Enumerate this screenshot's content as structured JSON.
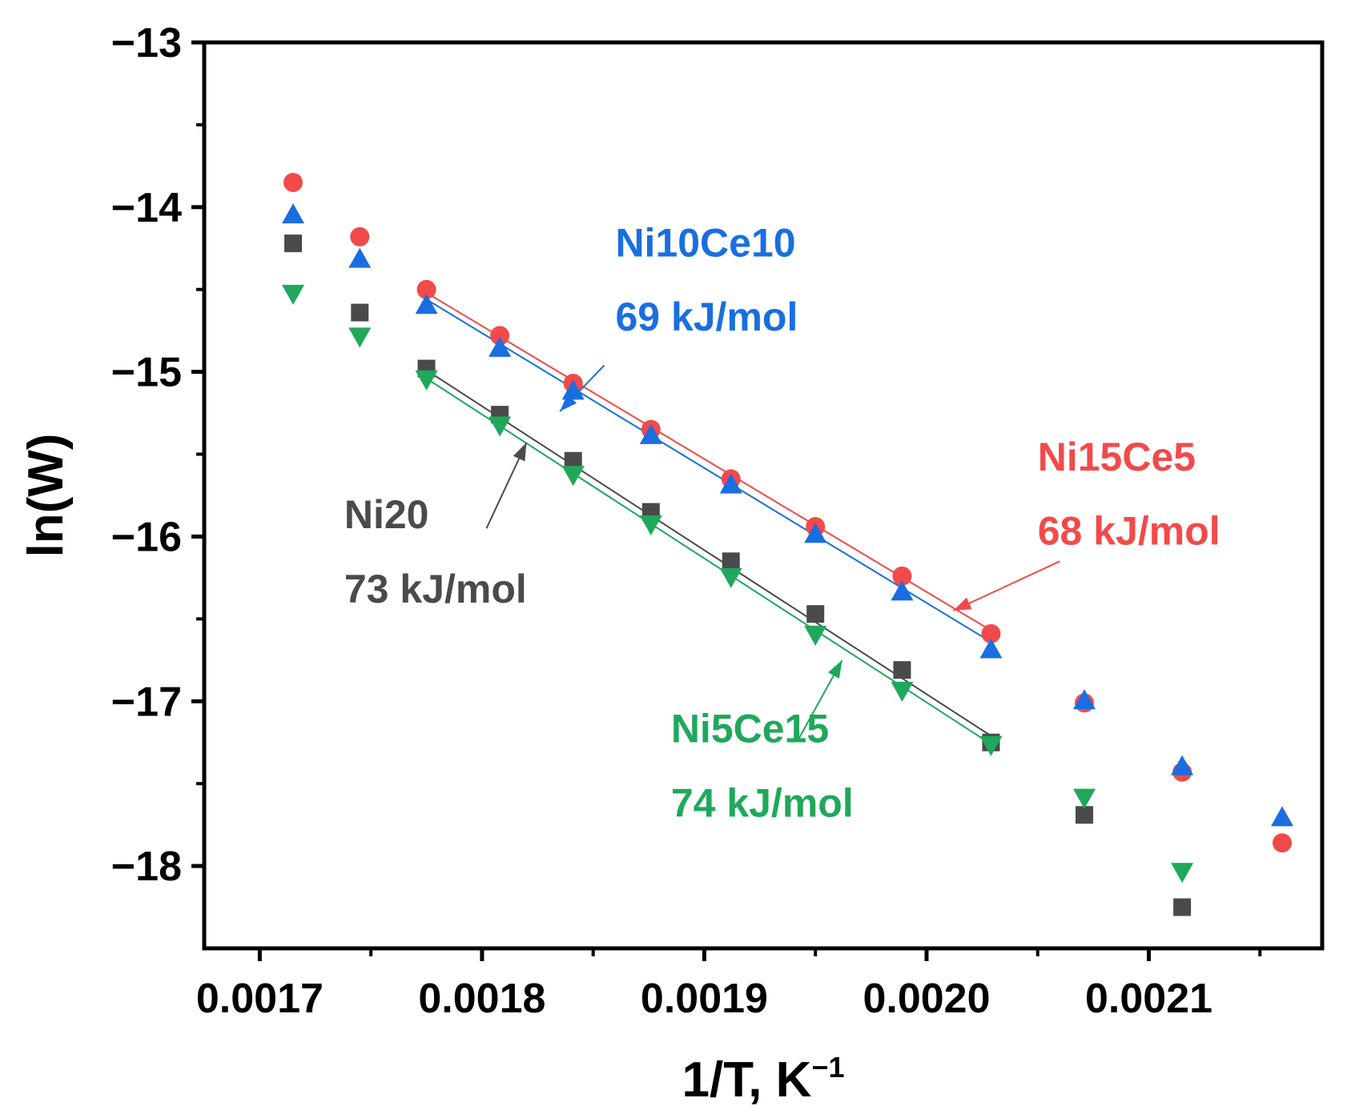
{
  "chart_data": {
    "type": "scatter",
    "xlabel": "1/T, K",
    "xlabel_sup": "−1",
    "ylabel": "ln(W)",
    "xlim": [
      0.001675,
      0.002178
    ],
    "ylim": [
      -18.5,
      -13.0
    ],
    "xticks": [
      0.0017,
      0.0018,
      0.0019,
      0.002,
      0.0021
    ],
    "xtick_labels": [
      "0.0017",
      "0.0018",
      "0.0019",
      "0.0020",
      "0.0021"
    ],
    "yticks": [
      -18,
      -17,
      -16,
      -15,
      -14,
      -13
    ],
    "ytick_labels": [
      "−18",
      "−17",
      "−16",
      "−15",
      "−14",
      "−13"
    ],
    "legend": "none",
    "grid": false,
    "series": [
      {
        "name": "Ni15Ce5",
        "marker": "circle",
        "color": "#f24a4a",
        "x": [
          0.001715,
          0.001745,
          0.001775,
          0.001808,
          0.001841,
          0.001876,
          0.001912,
          0.00195,
          0.001989,
          0.002029,
          0.002071,
          0.002115,
          0.00216
        ],
        "y": [
          -13.85,
          -14.18,
          -14.5,
          -14.78,
          -15.07,
          -15.35,
          -15.65,
          -15.94,
          -16.24,
          -16.59,
          -17.01,
          -17.43,
          -17.86
        ],
        "fit": {
          "x": [
            0.001775,
            0.002029
          ],
          "y": [
            -14.52,
            -16.57
          ]
        }
      },
      {
        "name": "Ni10Ce10",
        "marker": "triangle-up",
        "color": "#1a6ee0",
        "x": [
          0.001715,
          0.001745,
          0.001775,
          0.001808,
          0.001841,
          0.001876,
          0.001912,
          0.00195,
          0.001989,
          0.002029,
          0.002071,
          0.002115,
          0.00216
        ],
        "y": [
          -14.05,
          -14.32,
          -14.6,
          -14.86,
          -15.12,
          -15.39,
          -15.69,
          -15.99,
          -16.34,
          -16.69,
          -17.0,
          -17.4,
          -17.71
        ],
        "fit": {
          "x": [
            0.001775,
            0.002029
          ],
          "y": [
            -14.56,
            -16.64
          ]
        }
      },
      {
        "name": "Ni20",
        "marker": "square",
        "color": "#4a4a4a",
        "x": [
          0.001715,
          0.001745,
          0.001775,
          0.001808,
          0.001841,
          0.001876,
          0.001912,
          0.00195,
          0.001989,
          0.002029,
          0.002071,
          0.002115
        ],
        "y": [
          -14.22,
          -14.64,
          -14.98,
          -15.26,
          -15.54,
          -15.85,
          -16.15,
          -16.47,
          -16.81,
          -17.25,
          -17.69,
          -18.25
        ],
        "fit": {
          "x": [
            0.001775,
            0.002029
          ],
          "y": [
            -14.99,
            -17.21
          ]
        }
      },
      {
        "name": "Ni5Ce15",
        "marker": "triangle-down",
        "color": "#1fa85b",
        "x": [
          0.001715,
          0.001745,
          0.001775,
          0.001808,
          0.001841,
          0.001876,
          0.001912,
          0.00195,
          0.001989,
          0.002029,
          0.002071,
          0.002115
        ],
        "y": [
          -14.52,
          -14.78,
          -15.04,
          -15.32,
          -15.62,
          -15.92,
          -16.24,
          -16.59,
          -16.93,
          -17.26,
          -17.58,
          -18.03
        ],
        "fit": {
          "x": [
            0.001775,
            0.002029
          ],
          "y": [
            -15.04,
            -17.26
          ]
        }
      }
    ],
    "annotations": [
      {
        "series": "Ni10Ce10",
        "label": "Ni10Ce10",
        "energy": "69 kJ/mol",
        "text_x": 0.00186,
        "text_y": [
          -14.3,
          -14.75
        ],
        "arrow_from": [
          0.001855,
          -14.96
        ],
        "arrow_to": [
          0.001835,
          -15.24
        ]
      },
      {
        "series": "Ni15Ce5",
        "label": "Ni15Ce5",
        "energy": "68 kJ/mol",
        "text_x": 0.00205,
        "text_y": [
          -15.6,
          -16.05
        ],
        "arrow_from": [
          0.00206,
          -16.15
        ],
        "arrow_to": [
          0.002012,
          -16.45
        ]
      },
      {
        "series": "Ni20",
        "label": "Ni20",
        "energy": "73 kJ/mol",
        "text_x": 0.001738,
        "text_y": [
          -15.95,
          -16.4
        ],
        "arrow_from": [
          0.001802,
          -15.95
        ],
        "arrow_to": [
          0.00182,
          -15.43
        ]
      },
      {
        "series": "Ni5Ce15",
        "label": "Ni5Ce15",
        "energy": "74 kJ/mol",
        "text_x": 0.001885,
        "text_y": [
          -17.25,
          -17.7
        ],
        "arrow_from": [
          0.001942,
          -17.24
        ],
        "arrow_to": [
          0.001962,
          -16.75
        ]
      }
    ]
  }
}
